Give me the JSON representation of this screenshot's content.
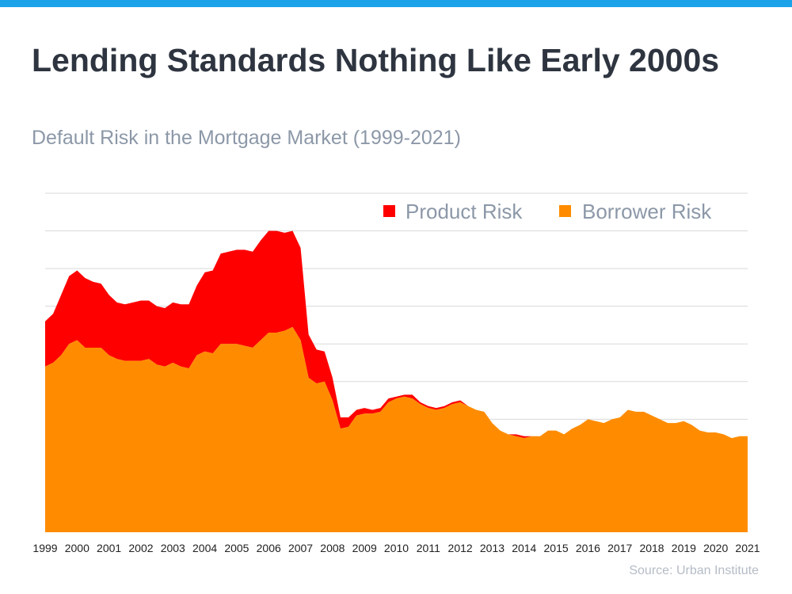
{
  "header": {
    "title": "Lending Standards Nothing Like Early 2000s",
    "subtitle": "Default Risk in the Mortgage Market (1999-2021)",
    "source": "Source: Urban Institute"
  },
  "colors": {
    "accent_bar": "#1aa3e8",
    "product_risk": "#ff0000",
    "borrower_risk": "#ff8c00",
    "gridline": "#d9d9d9"
  },
  "chart_data": {
    "type": "area",
    "stacked": true,
    "title": "Default Risk in the Mortgage Market (1999-2021)",
    "xlabel": "",
    "ylabel": "",
    "ylim": [
      0,
      9
    ],
    "grid": true,
    "legend_position": "top-right",
    "x_ticks": [
      "1999",
      "2000",
      "2001",
      "2002",
      "2003",
      "2004",
      "2005",
      "2006",
      "2007",
      "2008",
      "2009",
      "2010",
      "2011",
      "2012",
      "2013",
      "2014",
      "2015",
      "2016",
      "2017",
      "2018",
      "2019",
      "2020",
      "2021"
    ],
    "x": [
      1999.0,
      1999.25,
      1999.5,
      1999.75,
      2000.0,
      2000.25,
      2000.5,
      2000.75,
      2001.0,
      2001.25,
      2001.5,
      2001.75,
      2002.0,
      2002.25,
      2002.5,
      2002.75,
      2003.0,
      2003.25,
      2003.5,
      2003.75,
      2004.0,
      2004.25,
      2004.5,
      2004.75,
      2005.0,
      2005.25,
      2005.5,
      2005.75,
      2006.0,
      2006.25,
      2006.5,
      2006.75,
      2007.0,
      2007.25,
      2007.5,
      2007.75,
      2008.0,
      2008.25,
      2008.5,
      2008.75,
      2009.0,
      2009.25,
      2009.5,
      2009.75,
      2010.0,
      2010.25,
      2010.5,
      2010.75,
      2011.0,
      2011.25,
      2011.5,
      2011.75,
      2012.0,
      2012.25,
      2012.5,
      2012.75,
      2013.0,
      2013.25,
      2013.5,
      2013.75,
      2014.0,
      2014.25,
      2014.5,
      2014.75,
      2015.0,
      2015.25,
      2015.5,
      2015.75,
      2016.0,
      2016.25,
      2016.5,
      2016.75,
      2017.0,
      2017.25,
      2017.5,
      2017.75,
      2018.0,
      2018.25,
      2018.5,
      2018.75,
      2019.0,
      2019.25,
      2019.5,
      2019.75,
      2020.0,
      2020.25,
      2020.5,
      2020.75,
      2021.0
    ],
    "series": [
      {
        "name": "Borrower Risk",
        "color": "#ff8c00",
        "values": [
          4.4,
          4.5,
          4.7,
          5.0,
          5.1,
          4.9,
          4.9,
          4.9,
          4.7,
          4.6,
          4.55,
          4.55,
          4.55,
          4.6,
          4.45,
          4.4,
          4.5,
          4.4,
          4.35,
          4.7,
          4.8,
          4.75,
          5.0,
          5.0,
          5.0,
          4.95,
          4.9,
          5.1,
          5.3,
          5.3,
          5.35,
          5.45,
          5.1,
          4.1,
          3.95,
          4.0,
          3.5,
          2.75,
          2.8,
          3.1,
          3.15,
          3.15,
          3.2,
          3.45,
          3.55,
          3.6,
          3.55,
          3.4,
          3.3,
          3.25,
          3.3,
          3.4,
          3.45,
          3.35,
          3.25,
          3.2,
          2.9,
          2.7,
          2.6,
          2.55,
          2.5,
          2.55,
          2.55,
          2.7,
          2.7,
          2.6,
          2.75,
          2.85,
          3.0,
          2.95,
          2.9,
          3.0,
          3.05,
          3.25,
          3.2,
          3.2,
          3.1,
          3.0,
          2.9,
          2.9,
          2.95,
          2.85,
          2.7,
          2.65,
          2.65,
          2.6,
          2.5,
          2.55,
          2.55
        ]
      },
      {
        "name": "Product Risk",
        "color": "#ff0000",
        "values": [
          1.2,
          1.3,
          1.6,
          1.8,
          1.85,
          1.85,
          1.75,
          1.7,
          1.6,
          1.5,
          1.5,
          1.55,
          1.6,
          1.55,
          1.55,
          1.55,
          1.6,
          1.65,
          1.7,
          1.85,
          2.1,
          2.2,
          2.4,
          2.45,
          2.5,
          2.55,
          2.55,
          2.65,
          2.7,
          2.7,
          2.6,
          2.55,
          2.45,
          1.15,
          0.9,
          0.8,
          0.6,
          0.3,
          0.25,
          0.15,
          0.15,
          0.1,
          0.1,
          0.1,
          0.05,
          0.05,
          0.1,
          0.05,
          0.05,
          0.05,
          0.05,
          0.05,
          0.05,
          0.0,
          0.0,
          0.0,
          0.0,
          0.0,
          0.0,
          0.05,
          0.05,
          0.0,
          0.0,
          0.0,
          0.0,
          0.0,
          0.0,
          0.0,
          0.0,
          0.0,
          0.0,
          0.0,
          0.0,
          0.0,
          0.0,
          0.0,
          0.0,
          0.0,
          0.0,
          0.0,
          0.0,
          0.0,
          0.0,
          0.0,
          0.0,
          0.0,
          0.0,
          0.0,
          0.0
        ]
      }
    ],
    "legend": [
      {
        "name": "Product Risk",
        "color": "#ff0000"
      },
      {
        "name": "Borrower Risk",
        "color": "#ff8c00"
      }
    ]
  }
}
